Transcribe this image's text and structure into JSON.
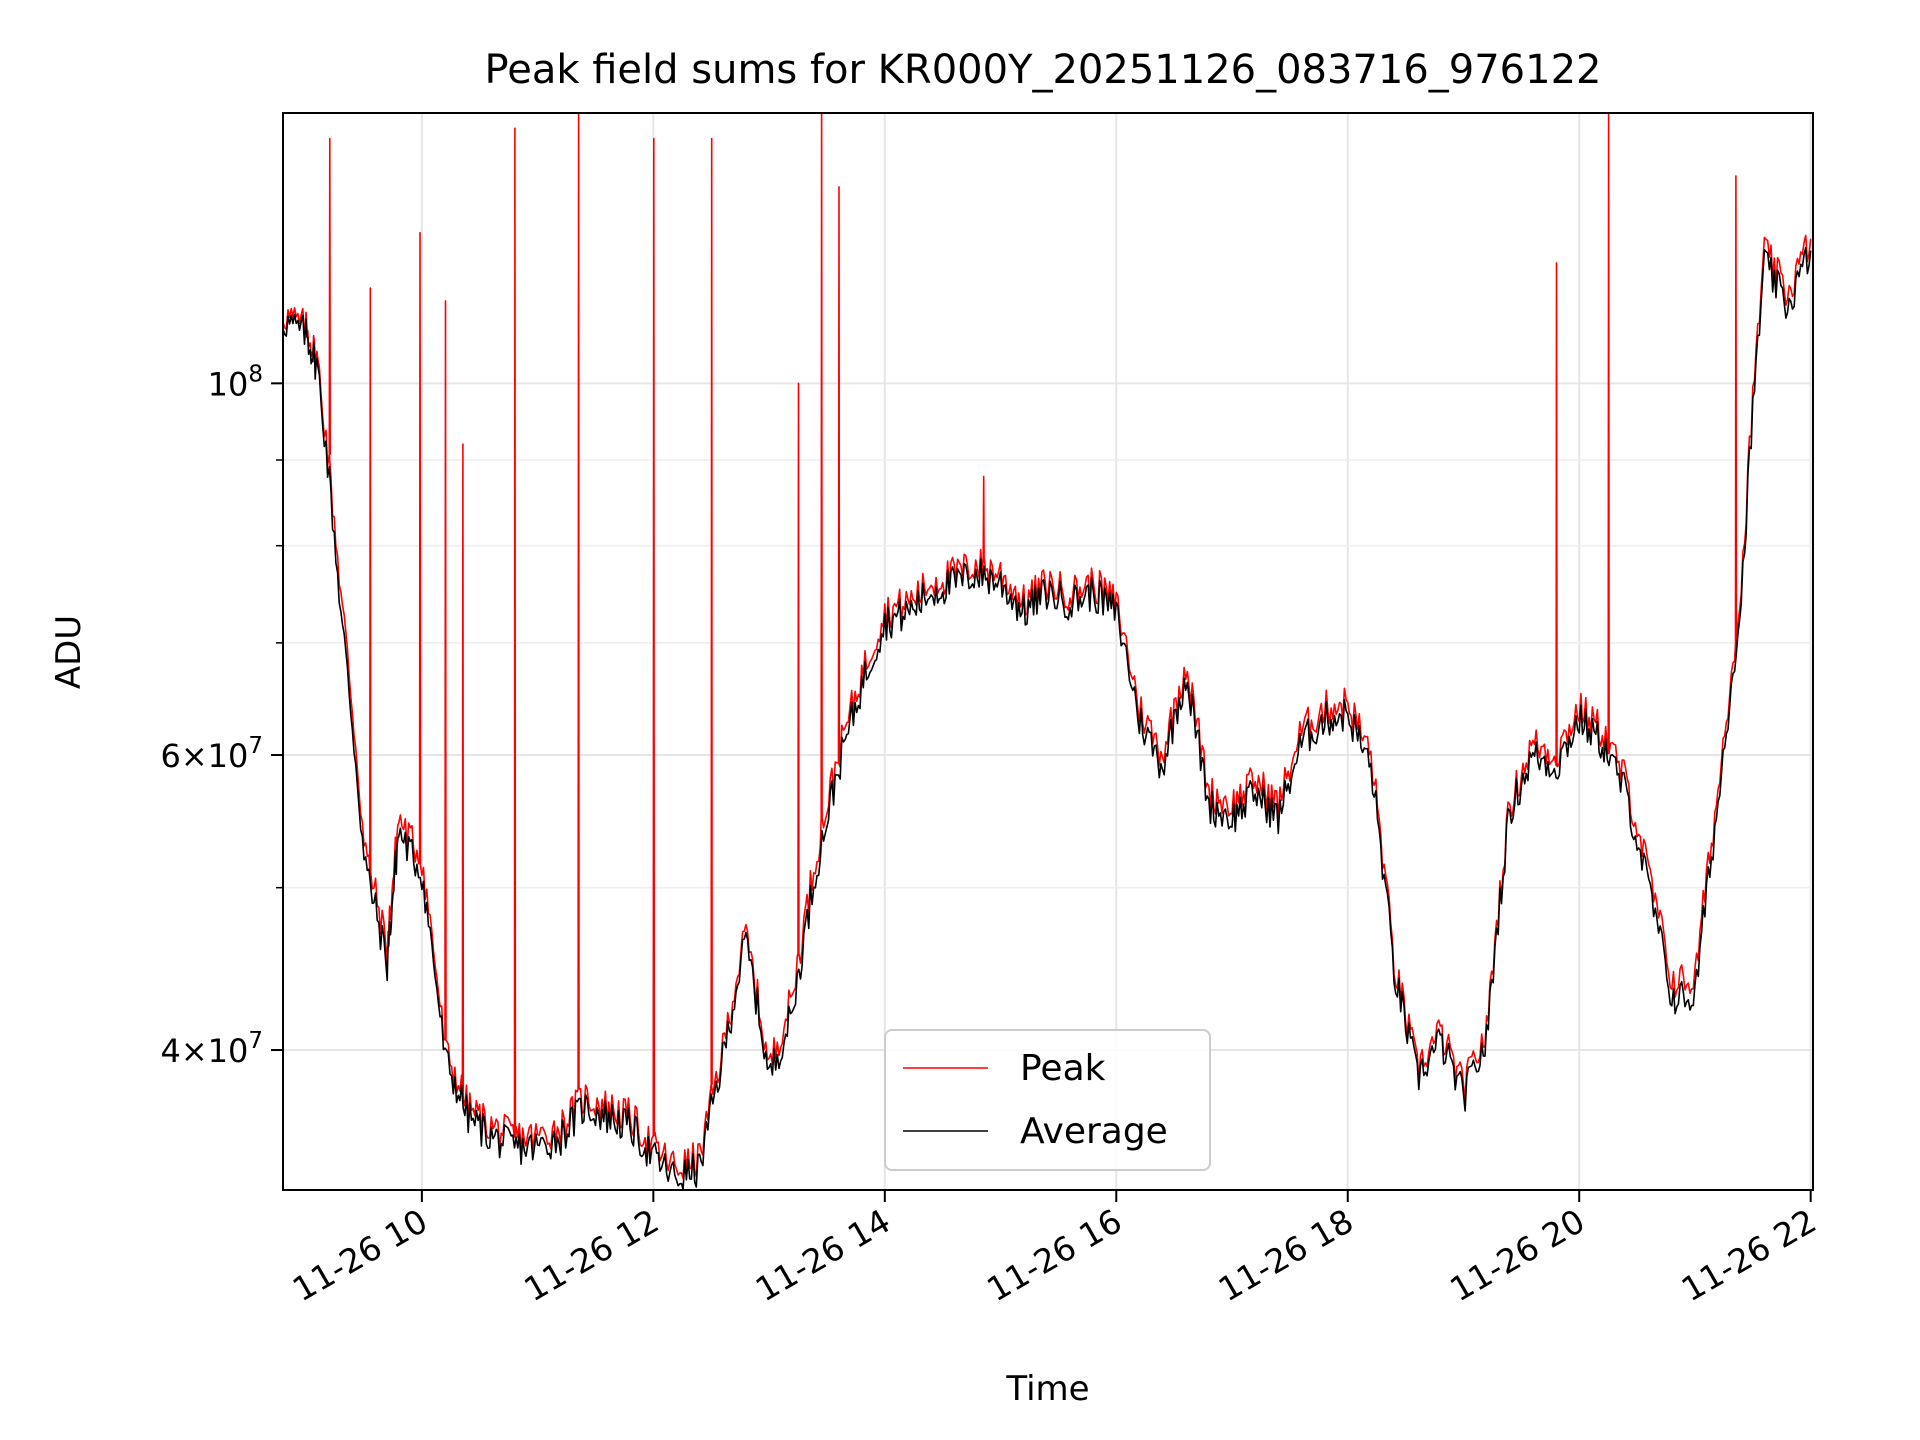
{
  "chart_data": {
    "type": "line",
    "title": "Peak field sums for KR000Y_20251126_083716_976122",
    "xlabel": "Time",
    "ylabel": "ADU",
    "y_scale": "log",
    "ylim": [
      33000000,
      145000000
    ],
    "xlim_hours": [
      8.8,
      22.02
    ],
    "grid": true,
    "legend_position": "lower center",
    "x_ticks": [
      {
        "hour": 10,
        "label": "11-26 10"
      },
      {
        "hour": 12,
        "label": "11-26 12"
      },
      {
        "hour": 14,
        "label": "11-26 14"
      },
      {
        "hour": 16,
        "label": "11-26 16"
      },
      {
        "hour": 18,
        "label": "11-26 18"
      },
      {
        "hour": 20,
        "label": "11-26 20"
      },
      {
        "hour": 22,
        "label": "11-26 22"
      }
    ],
    "y_major_ticks": [
      {
        "value": 40000000,
        "mantissa": "4",
        "exp": "7"
      },
      {
        "value": 60000000,
        "mantissa": "6",
        "exp": "7"
      },
      {
        "value": 100000000,
        "mantissa": "",
        "exp": "8"
      }
    ],
    "y_minor_ticks": [
      50000000,
      70000000,
      80000000,
      90000000
    ],
    "x_hours": [
      8.8,
      9.0,
      9.1,
      9.3,
      9.5,
      9.7,
      9.8,
      10.0,
      10.2,
      10.4,
      10.6,
      10.8,
      11.0,
      11.2,
      11.4,
      11.6,
      11.8,
      12.0,
      12.2,
      12.4,
      12.6,
      12.8,
      13.0,
      13.2,
      13.4,
      13.6,
      13.8,
      14.0,
      14.2,
      14.4,
      14.6,
      14.8,
      15.0,
      15.2,
      15.4,
      15.6,
      15.8,
      16.0,
      16.2,
      16.4,
      16.6,
      16.8,
      17.0,
      17.2,
      17.4,
      17.6,
      17.8,
      18.0,
      18.2,
      18.4,
      18.6,
      18.8,
      19.0,
      19.2,
      19.4,
      19.6,
      19.8,
      20.0,
      20.2,
      20.4,
      20.6,
      20.8,
      21.0,
      21.2,
      21.4,
      21.6,
      21.8,
      22.0
    ],
    "series": [
      {
        "name": "Peak",
        "color": "#ff0000",
        "values": [
          110000000,
          108000000,
          103000000,
          75000000,
          53000000,
          46000000,
          55000000,
          52000000,
          40000000,
          37000000,
          36000000,
          35500000,
          35500000,
          36000000,
          37500000,
          37000000,
          36500000,
          35000000,
          34000000,
          34500000,
          40000000,
          47000000,
          39000000,
          43000000,
          52000000,
          60000000,
          67000000,
          73000000,
          74000000,
          76000000,
          77000000,
          78000000,
          77000000,
          74000000,
          76000000,
          75000000,
          76000000,
          74000000,
          64000000,
          60000000,
          68000000,
          57000000,
          56000000,
          58000000,
          56000000,
          62000000,
          64000000,
          64500000,
          60000000,
          45000000,
          39000000,
          41000000,
          38000000,
          41000000,
          56000000,
          61000000,
          60000000,
          64000000,
          62000000,
          58000000,
          51000000,
          44000000,
          44000000,
          57000000,
          75000000,
          120000000,
          113000000,
          122000000
        ],
        "spikes": [
          {
            "hour": 9.2,
            "value": 140000000
          },
          {
            "hour": 9.55,
            "value": 114000000
          },
          {
            "hour": 9.98,
            "value": 123000000
          },
          {
            "hour": 10.2,
            "value": 112000000
          },
          {
            "hour": 10.35,
            "value": 92000000
          },
          {
            "hour": 10.8,
            "value": 142000000
          },
          {
            "hour": 11.35,
            "value": 145000000
          },
          {
            "hour": 12.0,
            "value": 140000000
          },
          {
            "hour": 12.5,
            "value": 140000000
          },
          {
            "hour": 13.25,
            "value": 100000000
          },
          {
            "hour": 13.45,
            "value": 145000000
          },
          {
            "hour": 13.6,
            "value": 131000000
          },
          {
            "hour": 14.85,
            "value": 88000000
          },
          {
            "hour": 19.8,
            "value": 118000000
          },
          {
            "hour": 20.25,
            "value": 145000000
          },
          {
            "hour": 21.35,
            "value": 133000000
          }
        ]
      },
      {
        "name": "Average",
        "color": "#000000",
        "values": [
          109000000,
          107000000,
          102000000,
          73000000,
          52000000,
          45000000,
          54000000,
          51000000,
          39500000,
          36500000,
          35500000,
          35000000,
          35000000,
          35500000,
          37000000,
          36500000,
          36000000,
          34500000,
          33500000,
          34000000,
          39500000,
          46500000,
          38500000,
          42000000,
          51000000,
          59000000,
          66000000,
          72000000,
          73000000,
          75000000,
          76000000,
          77000000,
          76000000,
          73000000,
          75000000,
          74000000,
          75000000,
          73000000,
          63000000,
          59000000,
          67000000,
          56000000,
          55000000,
          57000000,
          55000000,
          61000000,
          63000000,
          63500000,
          59000000,
          44500000,
          38500000,
          40500000,
          37500000,
          40500000,
          55500000,
          60000000,
          59000000,
          63000000,
          61000000,
          57000000,
          50000000,
          43000000,
          43000000,
          56000000,
          74000000,
          118000000,
          111000000,
          120000000
        ]
      }
    ]
  }
}
